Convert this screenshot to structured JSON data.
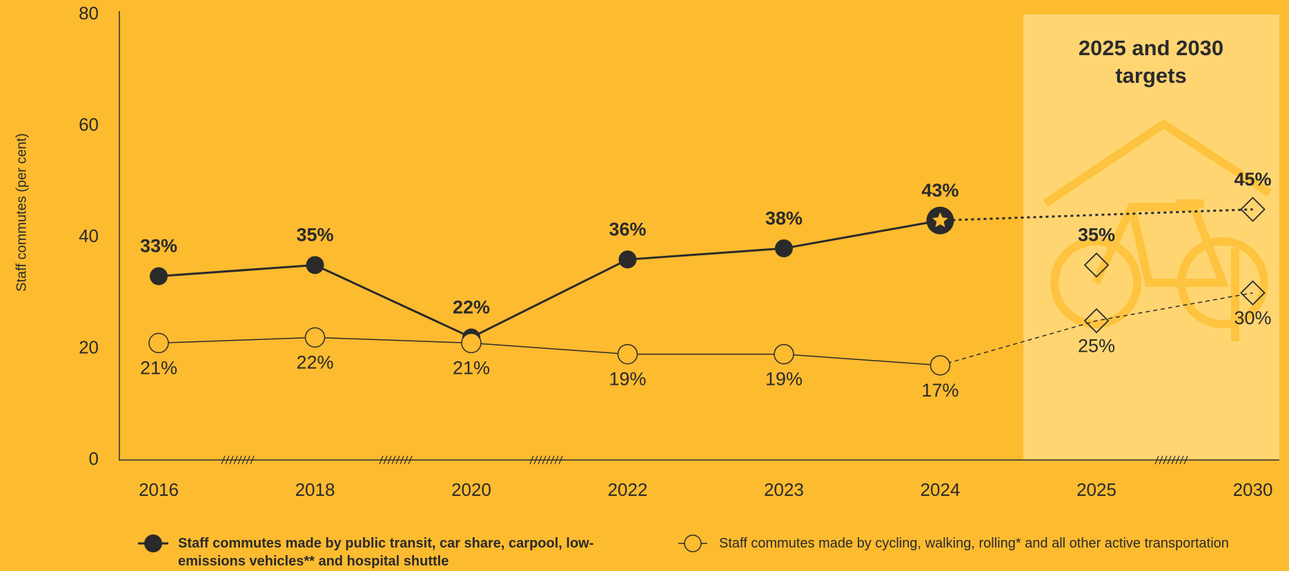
{
  "chart_data": {
    "type": "line",
    "y_axis_label": "Staff commutes (per cent)",
    "categories": [
      "2016",
      "2018",
      "2020",
      "2022",
      "2023",
      "2024",
      "2025",
      "2030"
    ],
    "ylim": [
      0,
      80
    ],
    "yticks": [
      0,
      20,
      40,
      60,
      80
    ],
    "grid": false,
    "highlight": {
      "label": "2025 and 2030 targets",
      "categories": [
        "2025",
        "2030"
      ]
    },
    "series": [
      {
        "name": "Staff commutes made by public transit, car share, carpool, low-emissions vehicles** and hospital shuttle",
        "color": "#2a2a2a",
        "marker": "filled",
        "values": [
          33,
          35,
          22,
          36,
          38,
          43,
          35,
          45
        ],
        "value_labels": [
          "33%",
          "35%",
          "22%",
          "36%",
          "38%",
          "43%",
          "35%",
          "45%"
        ]
      },
      {
        "name": "Staff commutes made by cycling, walking, rolling* and all other active transportation",
        "color": "#2a2a2a",
        "marker": "open",
        "values": [
          21,
          22,
          21,
          19,
          19,
          17,
          25,
          30
        ],
        "value_labels": [
          "21%",
          "22%",
          "21%",
          "19%",
          "19%",
          "17%",
          "25%",
          "30%"
        ]
      }
    ]
  }
}
